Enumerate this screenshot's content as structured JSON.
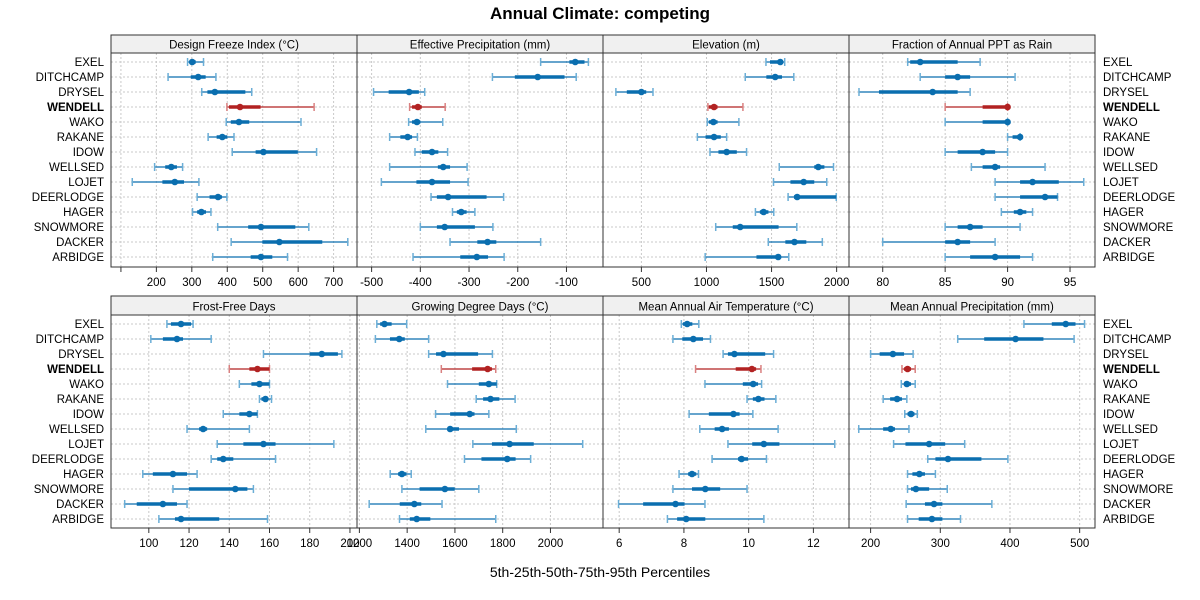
{
  "title": "Annual Climate: competing",
  "chart_data": {
    "type": "dotplot-percentile-intervals",
    "title": "Annual Climate: competing",
    "xlabel": "5th-25th-50th-75th-95th Percentiles",
    "ylabel": "",
    "legend": "none",
    "grid": true,
    "highlight_site": "WENDELL",
    "colors": {
      "default": "#0a6eaf",
      "default_light": "#6baed6",
      "highlight": "#b22222",
      "highlight_light": "#d98080",
      "grid": "#c8c8c8",
      "strip_bg": "#f0f0f0"
    },
    "sites": [
      "EXEL",
      "DITCHCAMP",
      "DRYSEL",
      "WENDELL",
      "WAKO",
      "RAKANE",
      "IDOW",
      "WELLSED",
      "LOJET",
      "DEERLODGE",
      "HAGER",
      "SNOWMORE",
      "DACKER",
      "ARBIDGE"
    ],
    "percentile_keys": [
      "p5",
      "p25",
      "p50",
      "p75",
      "p95"
    ],
    "panels": [
      {
        "title": "Design Freeze Index (°C)",
        "xlim": [
          72,
          766
        ],
        "ticks": [
          100,
          200,
          300,
          400,
          500,
          600,
          700
        ],
        "tick_labels": [
          "",
          "200",
          "300",
          "400",
          "500",
          "600",
          "700"
        ],
        "values": [
          [
            288,
            294,
            301,
            311,
            333
          ],
          [
            233,
            297,
            318,
            339,
            368
          ],
          [
            328,
            344,
            365,
            451,
            469
          ],
          [
            399,
            405,
            436,
            494,
            645
          ],
          [
            397,
            410,
            433,
            462,
            608
          ],
          [
            346,
            370,
            386,
            400,
            419
          ],
          [
            414,
            480,
            502,
            599,
            652
          ],
          [
            195,
            225,
            242,
            258,
            274
          ],
          [
            132,
            217,
            252,
            278,
            320
          ],
          [
            315,
            350,
            374,
            385,
            399
          ],
          [
            302,
            315,
            327,
            340,
            354
          ],
          [
            373,
            459,
            495,
            592,
            630
          ],
          [
            411,
            499,
            547,
            668,
            740
          ],
          [
            359,
            466,
            495,
            527,
            570
          ]
        ]
      },
      {
        "title": "Effective Precipitation (mm)",
        "xlim": [
          -530,
          -25
        ],
        "ticks": [
          -500,
          -400,
          -300,
          -200,
          -100
        ],
        "tick_labels": [
          "-500",
          "-400",
          "-300",
          "-200",
          "-100"
        ],
        "values": [
          [
            -153,
            -94,
            -82,
            -63,
            -55
          ],
          [
            -252,
            -206,
            -159,
            -104,
            -80
          ],
          [
            -496,
            -465,
            -423,
            -403,
            -391
          ],
          [
            -422,
            -417,
            -405,
            -397,
            -349
          ],
          [
            -424,
            -417,
            -407,
            -400,
            -354
          ],
          [
            -463,
            -441,
            -426,
            -417,
            -406
          ],
          [
            -411,
            -397,
            -376,
            -363,
            -344
          ],
          [
            -463,
            -364,
            -353,
            -339,
            -304
          ],
          [
            -480,
            -408,
            -376,
            -339,
            -302
          ],
          [
            -378,
            -366,
            -343,
            -264,
            -229
          ],
          [
            -334,
            -325,
            -316,
            -305,
            -288
          ],
          [
            -400,
            -366,
            -350,
            -288,
            -251
          ],
          [
            -339,
            -283,
            -262,
            -244,
            -153
          ],
          [
            -415,
            -318,
            -284,
            -261,
            -228
          ]
        ]
      },
      {
        "title": "Elevation (m)",
        "xlim": [
          205,
          2095
        ],
        "ticks": [
          500,
          1000,
          1500,
          2000
        ],
        "tick_labels": [
          "500",
          "1000",
          "1500",
          "2000"
        ],
        "values": [
          [
            1457,
            1488,
            1567,
            1585,
            1601
          ],
          [
            1298,
            1460,
            1528,
            1580,
            1671
          ],
          [
            304,
            388,
            500,
            537,
            589
          ],
          [
            1011,
            1018,
            1058,
            1085,
            1280
          ],
          [
            1006,
            1018,
            1053,
            1085,
            1249
          ],
          [
            930,
            993,
            1058,
            1110,
            1155
          ],
          [
            1027,
            1092,
            1155,
            1233,
            1308
          ],
          [
            1559,
            1828,
            1859,
            1906,
            1976
          ],
          [
            1515,
            1645,
            1747,
            1828,
            1924
          ],
          [
            1627,
            1672,
            1697,
            1997,
            1997
          ],
          [
            1376,
            1410,
            1439,
            1476,
            1517
          ],
          [
            1071,
            1202,
            1259,
            1554,
            1694
          ],
          [
            1475,
            1606,
            1676,
            1767,
            1890
          ],
          [
            990,
            1384,
            1551,
            1567,
            1632
          ]
        ]
      },
      {
        "title": "Fraction of Annual PPT as Rain",
        "xlim": [
          77.3,
          97.0
        ],
        "ticks": [
          80,
          85,
          90,
          95
        ],
        "tick_labels": [
          "80",
          "85",
          "90",
          "95"
        ],
        "values": [
          [
            82.0,
            82.2,
            83.0,
            86.0,
            87.8
          ],
          [
            83.0,
            85.0,
            86.0,
            87.0,
            90.6
          ],
          [
            78.1,
            79.7,
            84.0,
            86.0,
            87.0
          ],
          [
            85.0,
            88.0,
            90.0,
            90.0,
            90.0
          ],
          [
            85.0,
            88.0,
            90.0,
            90.0,
            90.0
          ],
          [
            90.0,
            90.4,
            91.0,
            91.0,
            91.0
          ],
          [
            85.0,
            86.0,
            88.0,
            89.0,
            90.0
          ],
          [
            87.1,
            88.0,
            89.0,
            89.4,
            93.0
          ],
          [
            89.0,
            91.0,
            92.0,
            94.1,
            96.1
          ],
          [
            89.0,
            91.0,
            93.0,
            94.0,
            94.0
          ],
          [
            89.5,
            90.5,
            91.0,
            91.5,
            92.0
          ],
          [
            85.0,
            86.0,
            87.0,
            88.0,
            91.0
          ],
          [
            80.0,
            85.0,
            86.0,
            87.0,
            89.0
          ],
          [
            85.0,
            87.0,
            89.0,
            91.0,
            92.0
          ]
        ]
      },
      {
        "title": "Frost-Free Days",
        "xlim": [
          81.2,
          203.5
        ],
        "ticks": [
          100,
          120,
          140,
          160,
          180,
          200
        ],
        "tick_labels": [
          "100",
          "120",
          "140",
          "160",
          "180",
          "200"
        ],
        "values": [
          [
            109,
            111,
            116,
            121,
            122
          ],
          [
            101,
            107,
            114,
            117,
            131
          ],
          [
            157,
            180,
            186,
            194,
            196
          ],
          [
            140,
            150,
            154,
            160,
            160
          ],
          [
            145,
            151,
            155,
            160,
            160
          ],
          [
            155,
            156,
            158,
            159,
            161
          ],
          [
            137,
            145,
            150,
            154,
            154
          ],
          [
            119,
            125,
            127,
            129,
            150
          ],
          [
            134,
            147,
            157,
            163,
            192
          ],
          [
            131,
            134,
            137,
            142,
            163
          ],
          [
            97,
            102,
            112,
            119,
            124
          ],
          [
            112,
            120,
            143,
            149,
            152
          ],
          [
            88,
            94,
            107,
            114,
            119
          ],
          [
            105,
            113,
            116,
            135,
            159
          ]
        ]
      },
      {
        "title": "Growing Degree Days (°C)",
        "xlim": [
          1190,
          2220
        ],
        "ticks": [
          1200,
          1400,
          1600,
          1800,
          2000
        ],
        "tick_labels": [
          "1200",
          "1400",
          "1600",
          "1800",
          "2000"
        ],
        "values": [
          [
            1273,
            1287,
            1305,
            1335,
            1398
          ],
          [
            1267,
            1328,
            1367,
            1390,
            1490
          ],
          [
            1490,
            1521,
            1552,
            1697,
            1757
          ],
          [
            1543,
            1672,
            1737,
            1755,
            1771
          ],
          [
            1569,
            1700,
            1742,
            1775,
            1775
          ],
          [
            1689,
            1718,
            1749,
            1786,
            1852
          ],
          [
            1519,
            1580,
            1662,
            1682,
            1742
          ],
          [
            1478,
            1569,
            1580,
            1617,
            1857
          ],
          [
            1675,
            1755,
            1829,
            1930,
            2135
          ],
          [
            1640,
            1711,
            1819,
            1854,
            1917
          ],
          [
            1329,
            1362,
            1378,
            1397,
            1417
          ],
          [
            1378,
            1452,
            1558,
            1599,
            1700
          ],
          [
            1241,
            1369,
            1430,
            1459,
            1546
          ],
          [
            1368,
            1411,
            1440,
            1497,
            1771
          ]
        ]
      },
      {
        "title": "Mean Annual Air Temperature (°C)",
        "xlim": [
          5.5,
          13.1
        ],
        "ticks": [
          6,
          8,
          10,
          12
        ],
        "tick_labels": [
          "6",
          "8",
          "10",
          "12"
        ],
        "values": [
          [
            7.92,
            7.97,
            8.1,
            8.26,
            8.46
          ],
          [
            7.66,
            7.95,
            8.29,
            8.59,
            8.82
          ],
          [
            9.21,
            9.36,
            9.56,
            10.51,
            10.77
          ],
          [
            8.36,
            9.6,
            10.1,
            10.23,
            10.38
          ],
          [
            8.65,
            9.82,
            10.14,
            10.29,
            10.4
          ],
          [
            9.95,
            10.13,
            10.3,
            10.49,
            10.84
          ],
          [
            8.16,
            8.77,
            9.53,
            9.72,
            10.13
          ],
          [
            8.49,
            8.95,
            9.18,
            9.39,
            10.91
          ],
          [
            9.36,
            10.11,
            10.47,
            10.95,
            12.66
          ],
          [
            8.87,
            9.67,
            9.78,
            9.98,
            10.55
          ],
          [
            7.85,
            8.13,
            8.25,
            8.38,
            8.45
          ],
          [
            7.66,
            8.25,
            8.66,
            9.12,
            9.95
          ],
          [
            5.98,
            6.74,
            7.74,
            8.02,
            8.65
          ],
          [
            7.49,
            7.79,
            8.07,
            8.66,
            10.47
          ]
        ]
      },
      {
        "title": "Mean Annual Precipitation (mm)",
        "xlim": [
          169,
          522
        ],
        "ticks": [
          200,
          300,
          400,
          500
        ],
        "tick_labels": [
          "200",
          "300",
          "400",
          "500"
        ],
        "values": [
          [
            420,
            460,
            480,
            494,
            507
          ],
          [
            325,
            363,
            408,
            448,
            492
          ],
          [
            200,
            213,
            232,
            248,
            261
          ],
          [
            245,
            248,
            253,
            258,
            264
          ],
          [
            244,
            248,
            252,
            258,
            264
          ],
          [
            218,
            228,
            238,
            245,
            252
          ],
          [
            249,
            253,
            258,
            263,
            267
          ],
          [
            183,
            218,
            229,
            235,
            255
          ],
          [
            233,
            250,
            284,
            307,
            335
          ],
          [
            282,
            293,
            311,
            359,
            397
          ],
          [
            253,
            260,
            270,
            278,
            293
          ],
          [
            253,
            258,
            265,
            284,
            310
          ],
          [
            251,
            278,
            291,
            303,
            374
          ],
          [
            253,
            269,
            288,
            303,
            329
          ]
        ]
      }
    ]
  }
}
